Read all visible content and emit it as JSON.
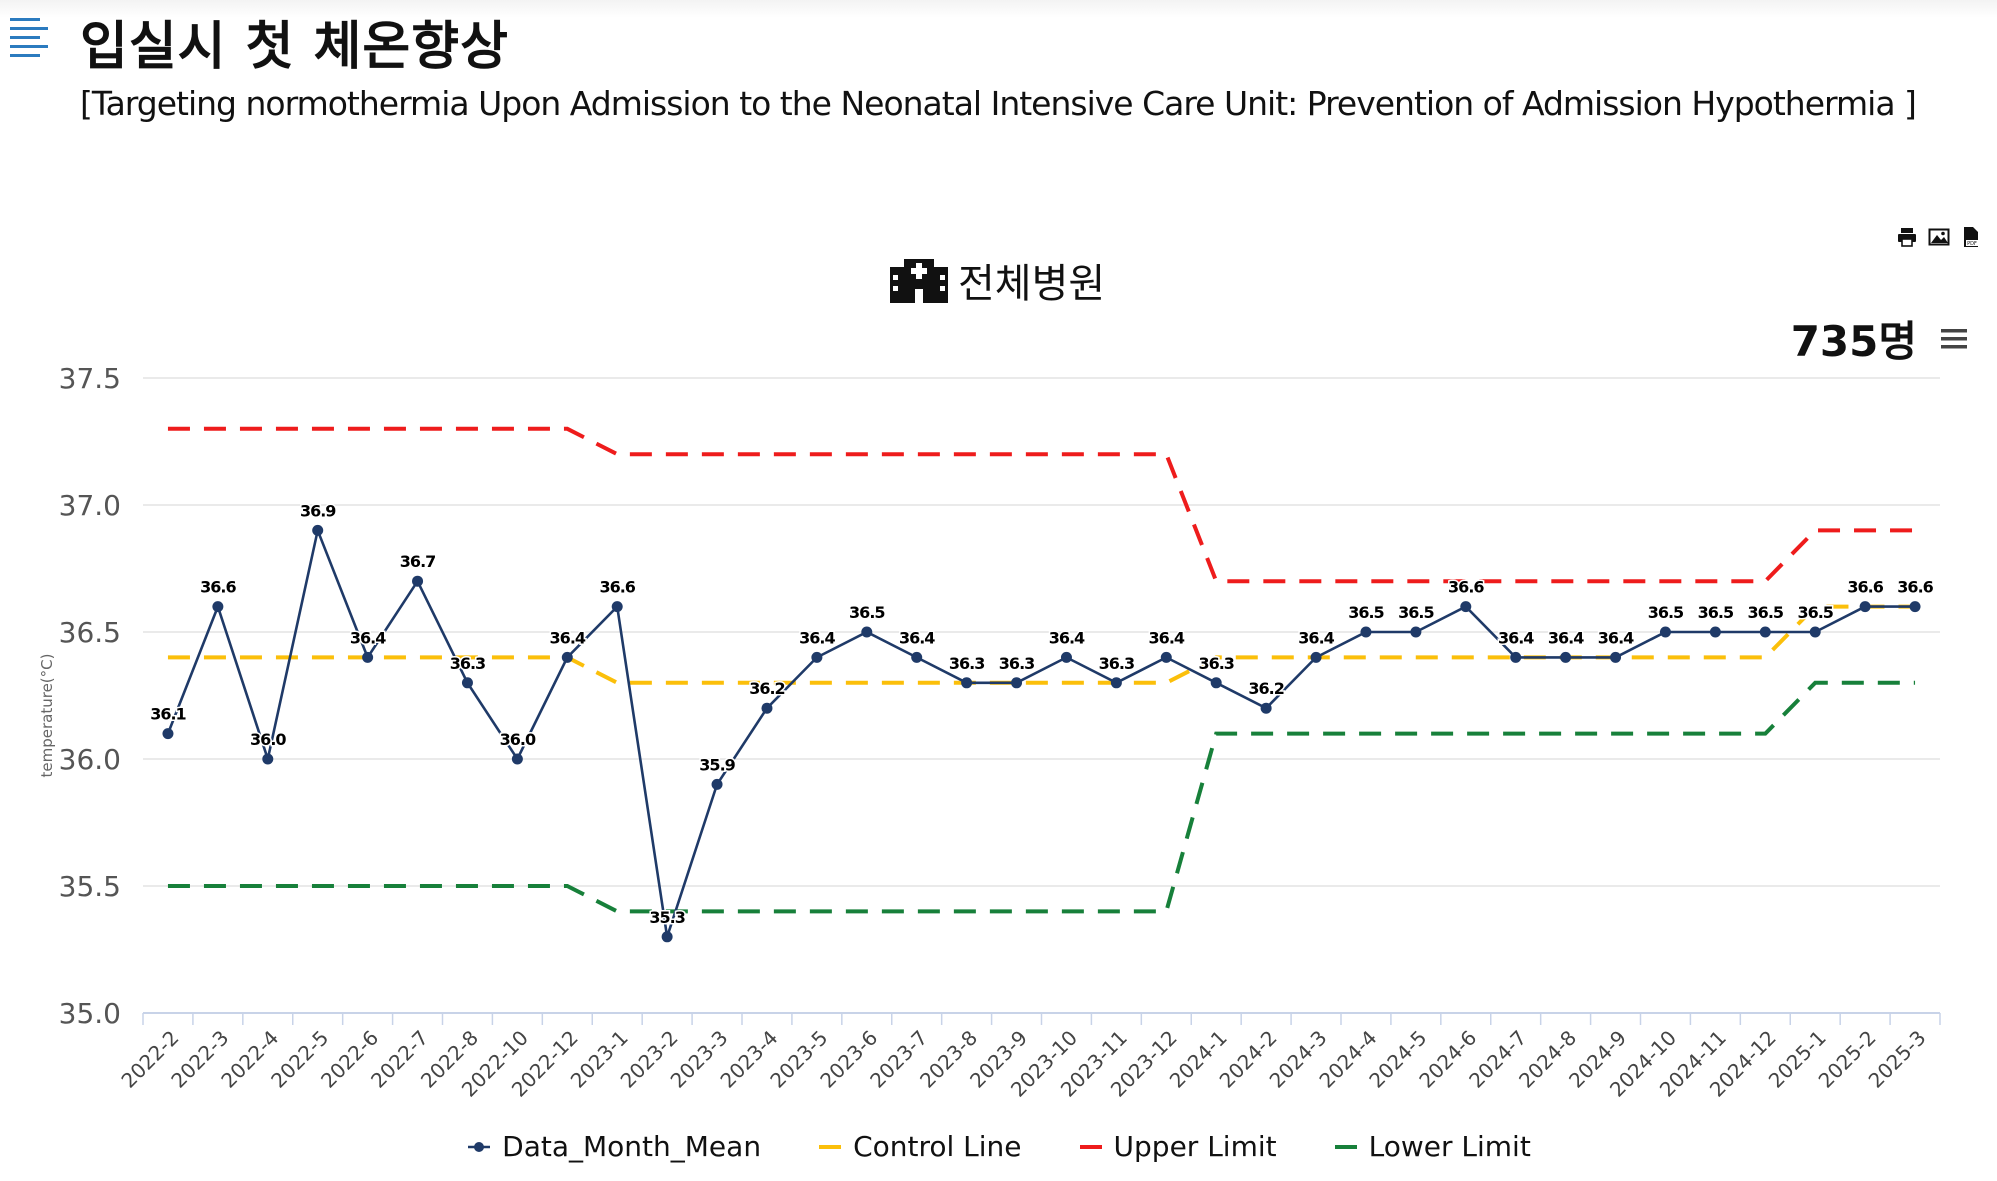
{
  "page": {
    "title": "입실시 첫 체온향상",
    "subtitle": "[Targeting normothermia Upon Admission to the Neonatal Intensive Care Unit: Prevention of Admission Hypothermia ]",
    "menu_icon": "hamburger-icon",
    "export_icons": [
      "print-icon",
      "image-icon",
      "pdf-icon"
    ]
  },
  "chart_header": {
    "icon": "hospital-icon",
    "title": "전체병원",
    "count": "735명",
    "menu_icon": "hamburger-icon"
  },
  "chart_data": {
    "type": "line",
    "ylabel": "temperature(°C)",
    "xlabel": "",
    "ylim": [
      35.0,
      37.5
    ],
    "yticks": [
      35.0,
      35.5,
      36.0,
      36.5,
      37.0,
      37.5
    ],
    "ytick_labels": [
      "35.0",
      "35.5",
      "36.0",
      "36.5",
      "37.0",
      "37.5"
    ],
    "grid": true,
    "legend_position": "bottom",
    "categories": [
      "2022-2",
      "2022-3",
      "2022-4",
      "2022-5",
      "2022-6",
      "2022-7",
      "2022-8",
      "2022-10",
      "2022-12",
      "2023-1",
      "2023-2",
      "2023-3",
      "2023-4",
      "2023-5",
      "2023-6",
      "2023-7",
      "2023-8",
      "2023-9",
      "2023-10",
      "2023-11",
      "2023-12",
      "2024-1",
      "2024-2",
      "2024-3",
      "2024-4",
      "2024-5",
      "2024-6",
      "2024-7",
      "2024-8",
      "2024-9",
      "2024-10",
      "2024-11",
      "2024-12",
      "2025-1",
      "2025-2",
      "2025-3"
    ],
    "series": [
      {
        "name": "Data_Month_Mean",
        "color": "#1f3a68",
        "style": "solid-markers",
        "values": [
          36.1,
          36.6,
          36.0,
          36.9,
          36.4,
          36.7,
          36.3,
          36.0,
          36.4,
          36.6,
          35.3,
          35.9,
          36.2,
          36.4,
          36.5,
          36.4,
          36.3,
          36.3,
          36.4,
          36.3,
          36.4,
          36.3,
          36.2,
          36.4,
          36.5,
          36.5,
          36.6,
          36.4,
          36.4,
          36.4,
          36.5,
          36.5,
          36.5,
          36.5,
          36.6,
          36.6
        ],
        "labels": [
          "36.1",
          "36.6",
          "36.0",
          "36.9",
          "36.4",
          "36.7",
          "36.3",
          "36.0",
          "36.4",
          "36.6",
          "35.3",
          "35.9",
          "36.2",
          "36.4",
          "36.5",
          "36.4",
          "36.3",
          "36.3",
          "36.4",
          "36.3",
          "36.4",
          "36.3",
          "36.2",
          "36.4",
          "36.5",
          "36.5",
          "36.6",
          "36.4",
          "36.4",
          "36.4",
          "36.5",
          "36.5",
          "36.5",
          "36.5",
          "36.6",
          "36.6"
        ]
      },
      {
        "name": "Control Line",
        "color": "#fbbf0a",
        "style": "dashed",
        "values": [
          36.4,
          36.4,
          36.4,
          36.4,
          36.4,
          36.4,
          36.4,
          36.4,
          36.4,
          36.3,
          36.3,
          36.3,
          36.3,
          36.3,
          36.3,
          36.3,
          36.3,
          36.3,
          36.3,
          36.3,
          36.3,
          36.4,
          36.4,
          36.4,
          36.4,
          36.4,
          36.4,
          36.4,
          36.4,
          36.4,
          36.4,
          36.4,
          36.4,
          36.6,
          36.6,
          36.6
        ]
      },
      {
        "name": "Upper Limit",
        "color": "#ee1c1c",
        "style": "dashed",
        "values": [
          37.3,
          37.3,
          37.3,
          37.3,
          37.3,
          37.3,
          37.3,
          37.3,
          37.3,
          37.2,
          37.2,
          37.2,
          37.2,
          37.2,
          37.2,
          37.2,
          37.2,
          37.2,
          37.2,
          37.2,
          37.2,
          36.7,
          36.7,
          36.7,
          36.7,
          36.7,
          36.7,
          36.7,
          36.7,
          36.7,
          36.7,
          36.7,
          36.7,
          36.9,
          36.9,
          36.9
        ]
      },
      {
        "name": "Lower Limit",
        "color": "#17803a",
        "style": "dashed",
        "values": [
          35.5,
          35.5,
          35.5,
          35.5,
          35.5,
          35.5,
          35.5,
          35.5,
          35.5,
          35.4,
          35.4,
          35.4,
          35.4,
          35.4,
          35.4,
          35.4,
          35.4,
          35.4,
          35.4,
          35.4,
          35.4,
          36.1,
          36.1,
          36.1,
          36.1,
          36.1,
          36.1,
          36.1,
          36.1,
          36.1,
          36.1,
          36.1,
          36.1,
          36.3,
          36.3,
          36.3
        ]
      }
    ]
  }
}
